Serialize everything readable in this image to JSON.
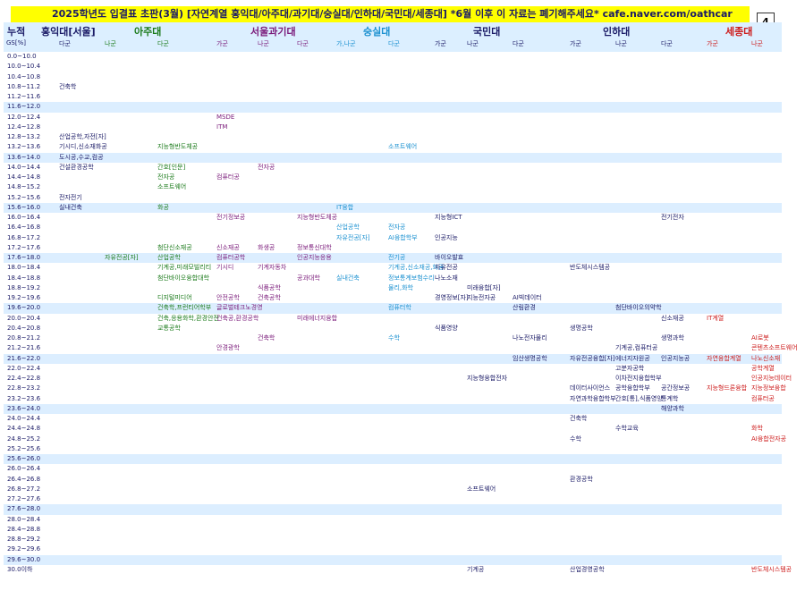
{
  "title": "2025학년도 입결표 초판(3월) [자연계열 홍익대/아주대/과기대/숭실대/인하대/국민대/세종대] *6월 이후 이 자료는 폐기해주세요* cafe.naver.com/oathcar",
  "page_number": "4",
  "header": {
    "nujeok": "누적",
    "gs": "GS[%]",
    "universities": [
      {
        "name": "홍익대[서울]",
        "color": "#1a1a66"
      },
      {
        "name": "아주대",
        "color": "#1a7a1a"
      },
      {
        "name": "서울과기대",
        "color": "#7a1a7a"
      },
      {
        "name": "숭실대",
        "color": "#1a90d0"
      },
      {
        "name": "국민대",
        "color": "#1a1a66"
      },
      {
        "name": "인하대",
        "color": "#1a1a66"
      },
      {
        "name": "세종대",
        "color": "#cc1a1a"
      }
    ],
    "gun": [
      {
        "label": "다군",
        "color": "#1a1a66"
      },
      {
        "label": "나군",
        "color": "#1a7a1a"
      },
      {
        "label": "다군",
        "color": "#1a7a1a"
      },
      {
        "label": "가군",
        "color": "#7a1a7a"
      },
      {
        "label": "나군",
        "color": "#7a1a7a"
      },
      {
        "label": "다군",
        "color": "#7a1a7a"
      },
      {
        "label": "가,나군",
        "color": "#1a90d0"
      },
      {
        "label": "다군",
        "color": "#1a90d0"
      },
      {
        "label": "가군",
        "color": "#1a1a66"
      },
      {
        "label": "나군",
        "color": "#1a1a66"
      },
      {
        "label": "다군",
        "color": "#1a1a66"
      },
      {
        "label": "가군",
        "color": "#1a1a66"
      },
      {
        "label": "나군",
        "color": "#1a1a66"
      },
      {
        "label": "다군",
        "color": "#1a1a66"
      },
      {
        "label": "가군",
        "color": "#cc1a1a"
      },
      {
        "label": "나군",
        "color": "#cc1a1a"
      }
    ]
  },
  "ranges": [
    "0.0~10.0",
    "10.0~10.4",
    "10.4~10.8",
    "10.8~11.2",
    "11.2~11.6",
    "11.6~12.0",
    "12.0~12.4",
    "12.4~12.8",
    "12.8~13.2",
    "13.2~13.6",
    "13.6~14.0",
    "14.0~14.4",
    "14.4~14.8",
    "14.8~15.2",
    "15.2~15.6",
    "15.6~16.0",
    "16.0~16.4",
    "16.4~16.8",
    "16.8~17.2",
    "17.2~17.6",
    "17.6~18.0",
    "18.0~18.4",
    "18.4~18.8",
    "18.8~19.2",
    "19.2~19.6",
    "19.6~20.0",
    "20.0~20.4",
    "20.4~20.8",
    "20.8~21.2",
    "21.2~21.6",
    "21.6~22.0",
    "22.0~22.4",
    "22.4~22.8",
    "22.8~23.2",
    "23.2~23.6",
    "23.6~24.0",
    "24.0~24.4",
    "24.4~24.8",
    "24.8~25.2",
    "25.2~25.6",
    "25.6~26.0",
    "26.0~26.4",
    "26.4~26.8",
    "26.8~27.2",
    "27.2~27.6",
    "27.6~28.0",
    "28.0~28.4",
    "28.4~28.8",
    "28.8~29.2",
    "29.2~29.6",
    "29.6~30.0",
    "30.0이하"
  ],
  "bands": [
    5,
    10,
    15,
    20,
    25,
    30,
    35,
    40,
    45,
    50
  ],
  "entries": [
    {
      "row": 3,
      "col": 0,
      "text": "건축학"
    },
    {
      "row": 6,
      "col": 3,
      "text": "MSDE"
    },
    {
      "row": 7,
      "col": 3,
      "text": "ITM"
    },
    {
      "row": 8,
      "col": 0,
      "text": "산업공학,자전[자]"
    },
    {
      "row": 9,
      "col": 0,
      "text": "기시디,신소재화공"
    },
    {
      "row": 9,
      "col": 2,
      "text": "지능형반도체공"
    },
    {
      "row": 9,
      "col": 7,
      "text": "소프트웨어"
    },
    {
      "row": 10,
      "col": 0,
      "text": "도시공,수교,컴공"
    },
    {
      "row": 11,
      "col": 0,
      "text": "건설환경공학"
    },
    {
      "row": 11,
      "col": 2,
      "text": "간호[인문]"
    },
    {
      "row": 11,
      "col": 4,
      "text": "전자공"
    },
    {
      "row": 12,
      "col": 2,
      "text": "전자공"
    },
    {
      "row": 12,
      "col": 3,
      "text": "컴퓨터공"
    },
    {
      "row": 13,
      "col": 2,
      "text": "소프트웨어"
    },
    {
      "row": 14,
      "col": 0,
      "text": "전자전기"
    },
    {
      "row": 15,
      "col": 0,
      "text": "실내건축"
    },
    {
      "row": 15,
      "col": 2,
      "text": "화공"
    },
    {
      "row": 15,
      "col": 6,
      "text": "IT융합"
    },
    {
      "row": 16,
      "col": 3,
      "text": "전기정보공"
    },
    {
      "row": 16,
      "col": 5,
      "text": "지능형반도체공"
    },
    {
      "row": 16,
      "col": 8,
      "text": "지능형ICT"
    },
    {
      "row": 16,
      "col": 13,
      "text": "전기전자"
    },
    {
      "row": 17,
      "col": 6,
      "text": "산업공학"
    },
    {
      "row": 17,
      "col": 7,
      "text": "전자공"
    },
    {
      "row": 18,
      "col": 6,
      "text": "자유전공[자]"
    },
    {
      "row": 18,
      "col": 7,
      "text": "AI융합학부"
    },
    {
      "row": 18,
      "col": 8,
      "text": "인공지능"
    },
    {
      "row": 19,
      "col": 2,
      "text": "첨단신소재공"
    },
    {
      "row": 19,
      "col": 3,
      "text": "신소재공"
    },
    {
      "row": 19,
      "col": 4,
      "text": "화생공"
    },
    {
      "row": 19,
      "col": 5,
      "text": "정보통신대학"
    },
    {
      "row": 20,
      "col": 1,
      "text": "자유전공[자]"
    },
    {
      "row": 20,
      "col": 2,
      "text": "산업공학"
    },
    {
      "row": 20,
      "col": 3,
      "text": "컴퓨터공학"
    },
    {
      "row": 20,
      "col": 5,
      "text": "인공지능응용"
    },
    {
      "row": 20,
      "col": 7,
      "text": "전기공"
    },
    {
      "row": 20,
      "col": 8,
      "text": "바이오발효"
    },
    {
      "row": 21,
      "col": 2,
      "text": "기계공,미래모빌리티"
    },
    {
      "row": 21,
      "col": 3,
      "text": "기시디"
    },
    {
      "row": 21,
      "col": 4,
      "text": "기계자동차"
    },
    {
      "row": 21,
      "col": 7,
      "text": "기계공,신소재공,화공"
    },
    {
      "row": 21,
      "col": 8,
      "text": "자유전공"
    },
    {
      "row": 21,
      "col": 11,
      "text": "반도체시스템공"
    },
    {
      "row": 22,
      "col": 2,
      "text": "첨단바이오융합대학"
    },
    {
      "row": 22,
      "col": 5,
      "text": "공과대학"
    },
    {
      "row": 22,
      "col": 6,
      "text": "실내건축"
    },
    {
      "row": 22,
      "col": 7,
      "text": "정보통계보험수리"
    },
    {
      "row": 22,
      "col": 8,
      "text": "나노소재"
    },
    {
      "row": 23,
      "col": 4,
      "text": "식품공학"
    },
    {
      "row": 23,
      "col": 7,
      "text": "물리,화학"
    },
    {
      "row": 23,
      "col": 9,
      "text": "미래융합[자]"
    },
    {
      "row": 24,
      "col": 2,
      "text": "디지털미디어"
    },
    {
      "row": 24,
      "col": 3,
      "text": "안전공학"
    },
    {
      "row": 24,
      "col": 4,
      "text": "건축공학"
    },
    {
      "row": 24,
      "col": 8,
      "text": "경영정보[자]"
    },
    {
      "row": 24,
      "col": 9,
      "text": "지능전자공"
    },
    {
      "row": 24,
      "col": 10,
      "text": "AI빅데이터"
    },
    {
      "row": 25,
      "col": 2,
      "text": "건축학,프런티어학부"
    },
    {
      "row": 25,
      "col": 3,
      "text": "글로벌테크노경영"
    },
    {
      "row": 25,
      "col": 7,
      "text": "컴퓨터학"
    },
    {
      "row": 25,
      "col": 10,
      "text": "산림환경"
    },
    {
      "row": 25,
      "col": 12,
      "text": "첨단바이오의약학"
    },
    {
      "row": 26,
      "col": 2,
      "text": "건축,응용화학,환경안전"
    },
    {
      "row": 26,
      "col": 3,
      "text": "건축공,환경공학"
    },
    {
      "row": 26,
      "col": 5,
      "text": "미래에너지융합"
    },
    {
      "row": 26,
      "col": 13,
      "text": "신소재공"
    },
    {
      "row": 26,
      "col": 14,
      "text": "IT계열"
    },
    {
      "row": 27,
      "col": 2,
      "text": "교통공학"
    },
    {
      "row": 27,
      "col": 8,
      "text": "식품영양"
    },
    {
      "row": 27,
      "col": 11,
      "text": "생명공학"
    },
    {
      "row": 28,
      "col": 4,
      "text": "건축학"
    },
    {
      "row": 28,
      "col": 7,
      "text": "수학"
    },
    {
      "row": 28,
      "col": 10,
      "text": "나노전자물리"
    },
    {
      "row": 28,
      "col": 13,
      "text": "생명과학"
    },
    {
      "row": 28,
      "col": 15,
      "text": "AI로봇"
    },
    {
      "row": 29,
      "col": 3,
      "text": "안경광학"
    },
    {
      "row": 29,
      "col": 12,
      "text": "기계공,컴퓨터공"
    },
    {
      "row": 29,
      "col": 15,
      "text": "콘텐츠소프트웨어"
    },
    {
      "row": 30,
      "col": 10,
      "text": "임산생명공학"
    },
    {
      "row": 30,
      "col": 11,
      "text": "자유전공융합[자]"
    },
    {
      "row": 30,
      "col": 12,
      "text": "에너지자원공"
    },
    {
      "row": 30,
      "col": 13,
      "text": "인공지능공"
    },
    {
      "row": 30,
      "col": 14,
      "text": "자연융합계열"
    },
    {
      "row": 30,
      "col": 15,
      "text": "나노신소재"
    },
    {
      "row": 31,
      "col": 12,
      "text": "고분자공학"
    },
    {
      "row": 31,
      "col": 15,
      "text": "공학계열"
    },
    {
      "row": 32,
      "col": 9,
      "text": "지능형융합전자"
    },
    {
      "row": 32,
      "col": 12,
      "text": "이차전지융합학부"
    },
    {
      "row": 32,
      "col": 15,
      "text": "인공지능데이터"
    },
    {
      "row": 33,
      "col": 11,
      "text": "데이터사이언스"
    },
    {
      "row": 33,
      "col": 12,
      "text": "공학융합학부"
    },
    {
      "row": 33,
      "col": 13,
      "text": "공간정보공"
    },
    {
      "row": 33,
      "col": 14,
      "text": "지능형드론융합"
    },
    {
      "row": 33,
      "col": 15,
      "text": "지능정보융합"
    },
    {
      "row": 34,
      "col": 11,
      "text": "자연과학융합학부"
    },
    {
      "row": 34,
      "col": 12,
      "text": "간호[통],식품영양"
    },
    {
      "row": 34,
      "col": 13,
      "text": "통계학"
    },
    {
      "row": 34,
      "col": 15,
      "text": "컴퓨터공"
    },
    {
      "row": 35,
      "col": 13,
      "text": "해양과학"
    },
    {
      "row": 36,
      "col": 11,
      "text": "건축학"
    },
    {
      "row": 37,
      "col": 12,
      "text": "수학교육"
    },
    {
      "row": 37,
      "col": 15,
      "text": "화학"
    },
    {
      "row": 38,
      "col": 11,
      "text": "수학"
    },
    {
      "row": 38,
      "col": 15,
      "text": "AI융합전자공"
    },
    {
      "row": 42,
      "col": 11,
      "text": "환경공학"
    },
    {
      "row": 43,
      "col": 9,
      "text": "소프트웨어"
    },
    {
      "row": 51,
      "col": 9,
      "text": "기계공"
    },
    {
      "row": 51,
      "col": 11,
      "text": "산업경영공학"
    },
    {
      "row": 51,
      "col": 15,
      "text": "반도체시스템공"
    }
  ]
}
